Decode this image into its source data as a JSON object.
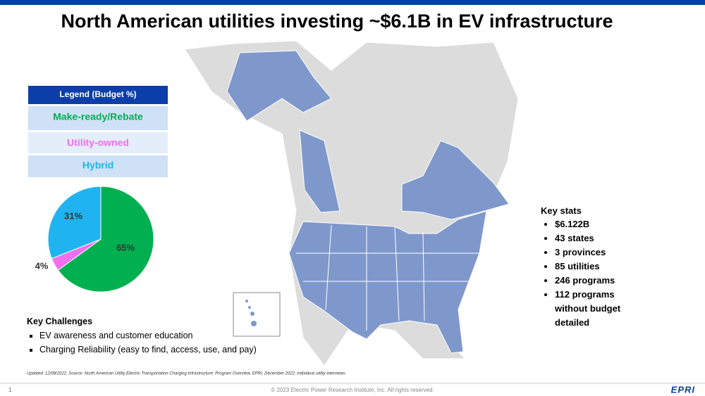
{
  "title": "North American utilities investing ~$6.1B in EV infrastructure",
  "chart_data": {
    "type": "pie",
    "title": "Legend (Budget %)",
    "categories": [
      "Make-ready/Rebate",
      "Utility-owned",
      "Hybrid"
    ],
    "values": [
      65,
      4,
      31
    ],
    "value_labels": [
      "65%",
      "4%",
      "31%"
    ],
    "colors": [
      "#00b050",
      "#f06ef0",
      "#1fb4ef"
    ]
  },
  "key_stats": {
    "title": "Key stats",
    "items": [
      "$6.122B",
      "43 states",
      "3 provinces",
      "85 utilities",
      "246 programs",
      "112 programs without budget detailed"
    ]
  },
  "key_challenges": {
    "title": "Key Challenges",
    "items": [
      "EV awareness and customer education",
      "Charging Reliability  (easy to find, access, use, and pay)"
    ]
  },
  "source": "Updated: 12/08/2022,  Source: North American Utility Electric Transportation Charging Infrastructure: Program Overview, EPRI, December 2022; individual utility interviews",
  "footer": {
    "page": "1",
    "copyright": "© 2023 Electric Power Research Institute, Inc. All rights reserved.",
    "logo": "EPRI"
  }
}
